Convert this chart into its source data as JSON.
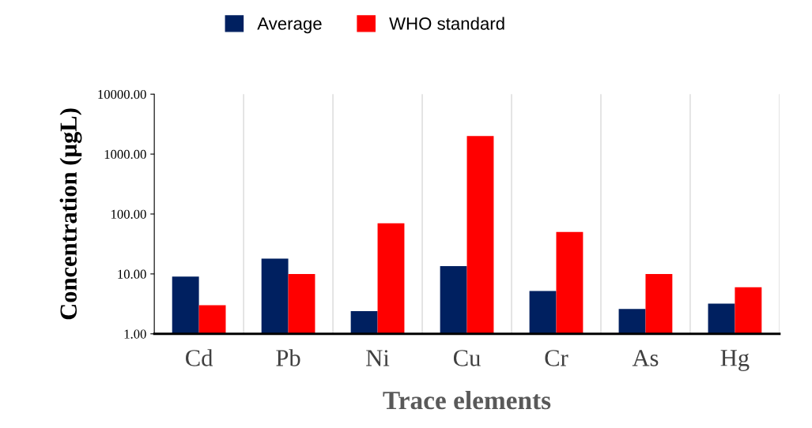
{
  "chart_data": {
    "type": "bar",
    "xlabel": "Trace elements",
    "ylabel": "Concentration (µgL)",
    "categories": [
      "Cd",
      "Pb",
      "Ni",
      "Cu",
      "Cr",
      "As",
      "Hg"
    ],
    "series": [
      {
        "name": "Average",
        "color": "#002060",
        "values": [
          9,
          18,
          2.4,
          13.5,
          5.2,
          2.6,
          3.2
        ]
      },
      {
        "name": "WHO standard",
        "color": "#ff0000",
        "values": [
          3,
          10,
          70,
          2000,
          50,
          10,
          6
        ]
      }
    ],
    "log": true,
    "ylim": [
      1,
      10000
    ],
    "yticks": [
      {
        "value": 1,
        "label": "1.00"
      },
      {
        "value": 10,
        "label": "10.00"
      },
      {
        "value": 100,
        "label": "100.00"
      },
      {
        "value": 1000,
        "label": "1000.00"
      },
      {
        "value": 10000,
        "label": "10000.00"
      }
    ],
    "legend": "top",
    "grid": false
  }
}
